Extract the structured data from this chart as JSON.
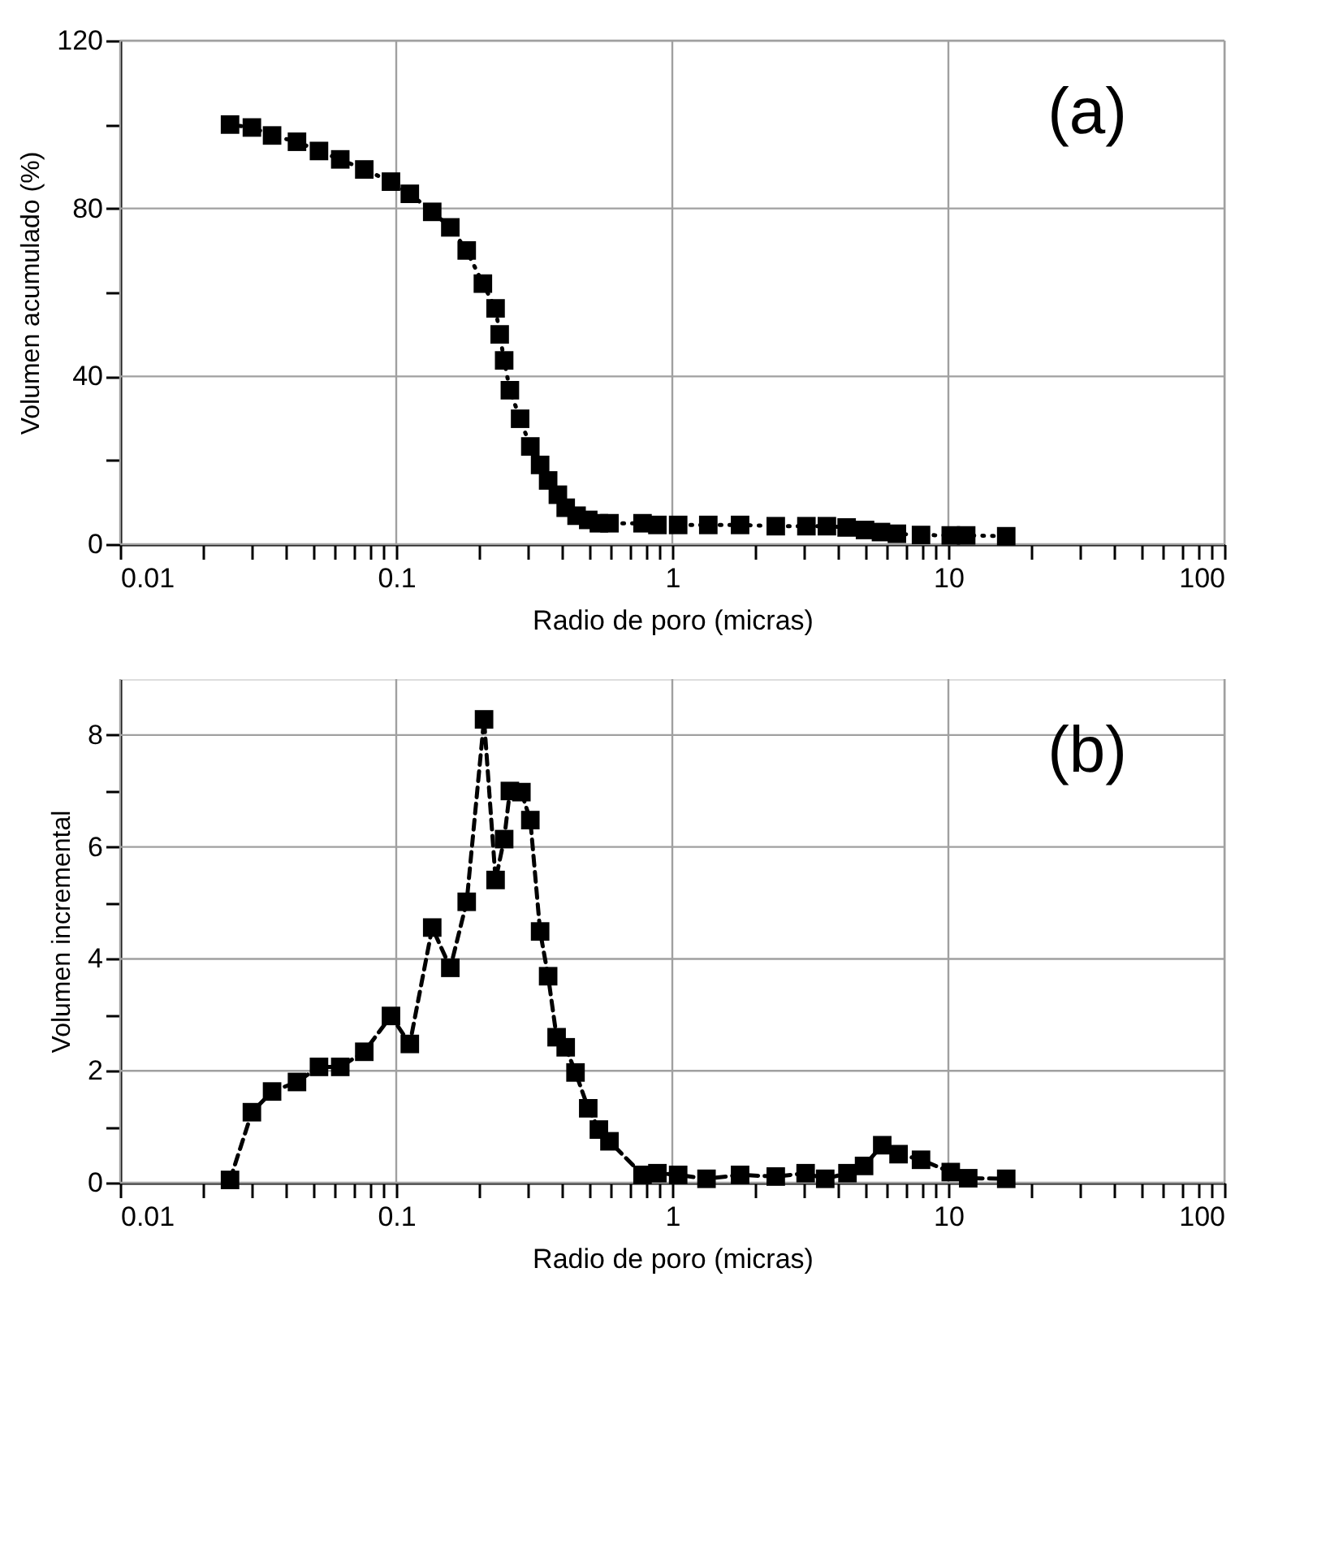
{
  "chart_data": [
    {
      "type": "line",
      "xlabel": "Radio de poro (micras)",
      "ylabel": "Volumen acumulado (%)",
      "annotations": [
        "(a)"
      ],
      "marker": "square",
      "line_style": "dotted",
      "grid": true,
      "log": "x",
      "xlim": [
        0.01,
        100
      ],
      "ylim": [
        0,
        120
      ],
      "xticks": [
        0.01,
        {
          "value": 0.02,
          "label": null
        },
        {
          "value": 0.03,
          "label": null
        },
        {
          "value": 0.04,
          "label": null
        },
        {
          "value": 0.05,
          "label": null
        },
        {
          "value": 0.06,
          "label": null
        },
        {
          "value": 0.07,
          "label": null
        },
        {
          "value": 0.08,
          "label": null
        },
        {
          "value": 0.09,
          "label": null
        },
        0.1,
        {
          "value": 0.2,
          "label": null
        },
        {
          "value": 0.3,
          "label": null
        },
        {
          "value": 0.4,
          "label": null
        },
        {
          "value": 0.5,
          "label": null
        },
        {
          "value": 0.6,
          "label": null
        },
        {
          "value": 0.7,
          "label": null
        },
        {
          "value": 0.8,
          "label": null
        },
        {
          "value": 0.9,
          "label": null
        },
        1,
        {
          "value": 2,
          "label": null
        },
        {
          "value": 3,
          "label": null
        },
        {
          "value": 4,
          "label": null
        },
        {
          "value": 5,
          "label": null
        },
        {
          "value": 6,
          "label": null
        },
        {
          "value": 7,
          "label": null
        },
        {
          "value": 8,
          "label": null
        },
        {
          "value": 9,
          "label": null
        },
        10,
        {
          "value": 20,
          "label": null
        },
        {
          "value": 30,
          "label": null
        },
        {
          "value": 40,
          "label": null
        },
        {
          "value": 50,
          "label": null
        },
        {
          "value": 60,
          "label": null
        },
        {
          "value": 70,
          "label": null
        },
        {
          "value": 80,
          "label": null
        },
        {
          "value": 90,
          "label": null
        },
        100
      ],
      "yticks": [
        0,
        {
          "value": 20,
          "label": null
        },
        40,
        {
          "value": 60,
          "label": null
        },
        80,
        {
          "value": 100,
          "label": null
        },
        120
      ],
      "series": [
        {
          "color": "#000000",
          "x": [
            0.025,
            0.03,
            0.0355,
            0.0437,
            0.0525,
            0.0627,
            0.0766,
            0.0957,
            0.112,
            0.135,
            0.157,
            0.18,
            0.206,
            0.229,
            0.237,
            0.246,
            0.258,
            0.281,
            0.306,
            0.332,
            0.355,
            0.385,
            0.411,
            0.45,
            0.496,
            0.542,
            0.592,
            0.78,
            0.883,
            1.05,
            1.35,
            1.76,
            2.37,
            3.06,
            3.63,
            4.28,
            4.99,
            5.7,
            6.51,
            7.96,
            10.2,
            11.6,
            16.2
          ],
          "values": [
            100,
            99.3,
            97.4,
            95.9,
            93.7,
            91.7,
            89.3,
            86.4,
            83.5,
            79.2,
            75.5,
            70.0,
            62.1,
            56.2,
            50.0,
            43.8,
            36.7,
            29.9,
            23.3,
            18.9,
            15.2,
            11.8,
            8.7,
            6.8,
            5.8,
            5.0,
            5.0,
            5.0,
            4.6,
            4.6,
            4.6,
            4.6,
            4.3,
            4.3,
            4.3,
            4.0,
            3.4,
            2.9,
            2.5,
            2.2,
            2.1,
            2.1,
            1.9
          ]
        }
      ]
    },
    {
      "type": "line",
      "xlabel": "Radio de poro (micras)",
      "ylabel": "Volumen incremental",
      "annotations": [
        "(b)"
      ],
      "marker": "square",
      "line_style": "dashed",
      "grid": true,
      "log": "x",
      "xlim": [
        0.01,
        100
      ],
      "ylim": [
        0,
        9
      ],
      "xticks": [
        0.01,
        {
          "value": 0.02,
          "label": null
        },
        {
          "value": 0.03,
          "label": null
        },
        {
          "value": 0.04,
          "label": null
        },
        {
          "value": 0.05,
          "label": null
        },
        {
          "value": 0.06,
          "label": null
        },
        {
          "value": 0.07,
          "label": null
        },
        {
          "value": 0.08,
          "label": null
        },
        {
          "value": 0.09,
          "label": null
        },
        0.1,
        {
          "value": 0.2,
          "label": null
        },
        {
          "value": 0.3,
          "label": null
        },
        {
          "value": 0.4,
          "label": null
        },
        {
          "value": 0.5,
          "label": null
        },
        {
          "value": 0.6,
          "label": null
        },
        {
          "value": 0.7,
          "label": null
        },
        {
          "value": 0.8,
          "label": null
        },
        {
          "value": 0.9,
          "label": null
        },
        1,
        {
          "value": 2,
          "label": null
        },
        {
          "value": 3,
          "label": null
        },
        {
          "value": 4,
          "label": null
        },
        {
          "value": 5,
          "label": null
        },
        {
          "value": 6,
          "label": null
        },
        {
          "value": 7,
          "label": null
        },
        {
          "value": 8,
          "label": null
        },
        {
          "value": 9,
          "label": null
        },
        10,
        {
          "value": 20,
          "label": null
        },
        {
          "value": 30,
          "label": null
        },
        {
          "value": 40,
          "label": null
        },
        {
          "value": 50,
          "label": null
        },
        {
          "value": 60,
          "label": null
        },
        {
          "value": 70,
          "label": null
        },
        {
          "value": 80,
          "label": null
        },
        {
          "value": 90,
          "label": null
        },
        100
      ],
      "yticks": [
        0,
        {
          "value": 1,
          "label": null
        },
        2,
        {
          "value": 3,
          "label": null
        },
        4,
        {
          "value": 5,
          "label": null
        },
        6,
        {
          "value": 7,
          "label": null
        },
        8
      ],
      "series": [
        {
          "color": "#000000",
          "x": [
            0.025,
            0.03,
            0.0355,
            0.0437,
            0.0525,
            0.0627,
            0.0766,
            0.0957,
            0.112,
            0.135,
            0.157,
            0.18,
            0.208,
            0.229,
            0.246,
            0.258,
            0.284,
            0.306,
            0.332,
            0.355,
            0.381,
            0.411,
            0.446,
            0.496,
            0.542,
            0.592,
            0.78,
            0.883,
            1.05,
            1.33,
            1.76,
            2.37,
            3.04,
            3.58,
            4.31,
            4.95,
            5.76,
            6.6,
            7.96,
            10.2,
            11.8,
            16.2
          ],
          "values": [
            0.05,
            1.26,
            1.63,
            1.8,
            2.07,
            2.07,
            2.34,
            2.98,
            2.48,
            4.56,
            3.84,
            5.02,
            8.28,
            5.41,
            6.14,
            7.0,
            6.98,
            6.48,
            4.49,
            3.69,
            2.6,
            2.42,
            1.97,
            1.33,
            0.95,
            0.74,
            0.14,
            0.17,
            0.14,
            0.07,
            0.14,
            0.11,
            0.17,
            0.07,
            0.17,
            0.3,
            0.67,
            0.51,
            0.41,
            0.19,
            0.08,
            0.07
          ]
        }
      ]
    }
  ]
}
